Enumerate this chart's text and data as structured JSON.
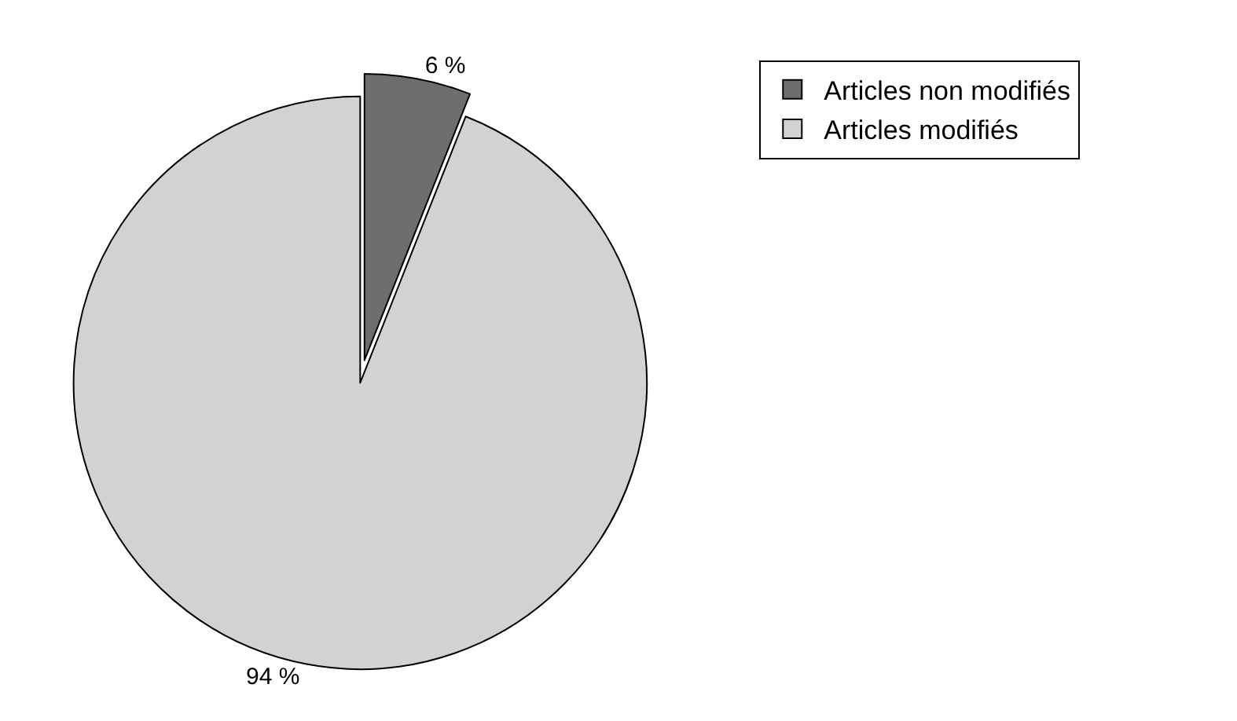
{
  "chart_data": {
    "type": "pie",
    "categories": [
      "Articles non modifiés",
      "Articles modifiés"
    ],
    "values": [
      6,
      94
    ],
    "colors": [
      "#6e6e6e",
      "#d2d2d2"
    ],
    "value_labels": [
      "6 %",
      "94 %"
    ],
    "legend": "top right"
  }
}
